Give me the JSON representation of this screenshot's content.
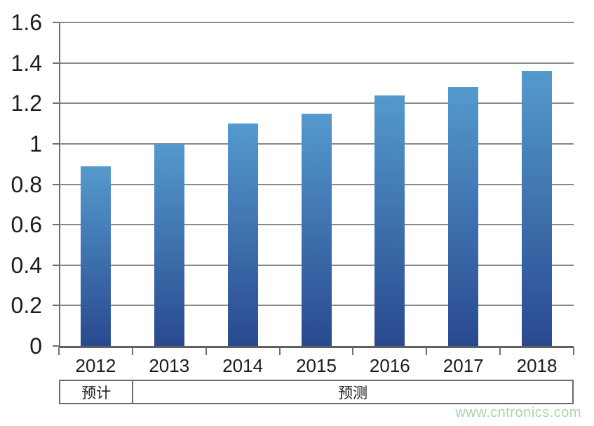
{
  "chart_data": {
    "type": "bar",
    "title": "",
    "xlabel": "",
    "ylabel": "",
    "categories": [
      "2012",
      "2013",
      "2014",
      "2015",
      "2016",
      "2017",
      "2018"
    ],
    "values": [
      0.89,
      1.0,
      1.1,
      1.15,
      1.24,
      1.28,
      1.36
    ],
    "ylim": [
      0,
      1.6
    ],
    "ytick_values": [
      0,
      0.2,
      0.4,
      0.6,
      0.8,
      1,
      1.2,
      1.4,
      1.6
    ],
    "ytick_labels": [
      "0",
      "0.2",
      "0.4",
      "0.6",
      "0.8",
      "1",
      "1.2",
      "1.4",
      "1.6"
    ],
    "grid": true,
    "legend": false,
    "colors": {
      "bar_gradient_top": "#549ace",
      "bar_gradient_bottom": "#29498f",
      "gridline": "#8a8a8a",
      "axis": "#5f5f5f"
    },
    "footer_row": {
      "cells": [
        {
          "label": "预计",
          "span": 1
        },
        {
          "label": "预测",
          "span": 6
        }
      ]
    }
  },
  "watermark": {
    "text": "www.cntronics.com",
    "color": "#a6d7a8"
  }
}
